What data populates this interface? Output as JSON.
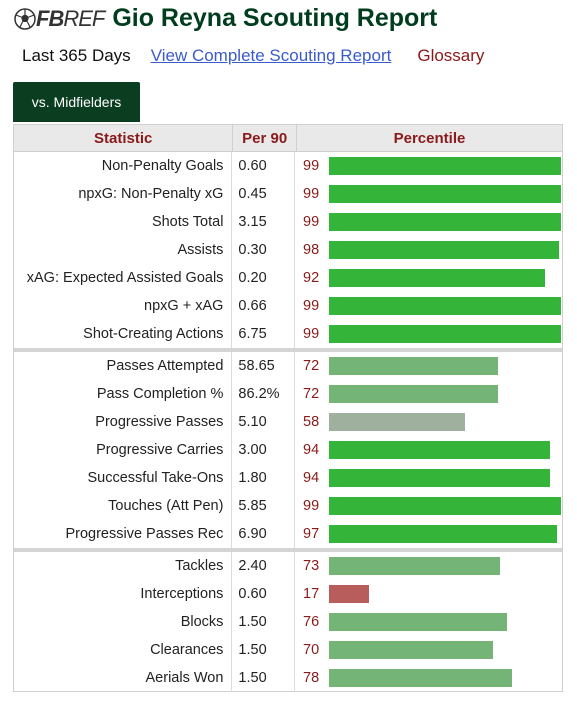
{
  "header": {
    "logo_text_bold": "FB",
    "logo_text_light": "REF",
    "title": "Gio Reyna Scouting Report"
  },
  "subnav": {
    "period": "Last 365 Days",
    "complete_link": "View Complete Scouting Report",
    "glossary": "Glossary"
  },
  "tab": {
    "label": "vs. Midfielders"
  },
  "colors": {
    "brand_green": "#0b3d20",
    "title_green": "#003c1e",
    "header_red": "#8a1a1a",
    "bar_high": "#35b43a",
    "bar_mid": "#74b477",
    "bar_low": "#9fb09f",
    "bar_bad": "#b85c5c"
  },
  "table": {
    "columns": [
      "Statistic",
      "Per 90",
      "Percentile"
    ],
    "groups": [
      [
        {
          "stat": "Non-Penalty Goals",
          "per90": "0.60",
          "pct": 99
        },
        {
          "stat": "npxG: Non-Penalty xG",
          "per90": "0.45",
          "pct": 99
        },
        {
          "stat": "Shots Total",
          "per90": "3.15",
          "pct": 99
        },
        {
          "stat": "Assists",
          "per90": "0.30",
          "pct": 98
        },
        {
          "stat": "xAG: Expected Assisted Goals",
          "per90": "0.20",
          "pct": 92
        },
        {
          "stat": "npxG + xAG",
          "per90": "0.66",
          "pct": 99
        },
        {
          "stat": "Shot-Creating Actions",
          "per90": "6.75",
          "pct": 99
        }
      ],
      [
        {
          "stat": "Passes Attempted",
          "per90": "58.65",
          "pct": 72
        },
        {
          "stat": "Pass Completion %",
          "per90": "86.2%",
          "pct": 72
        },
        {
          "stat": "Progressive Passes",
          "per90": "5.10",
          "pct": 58
        },
        {
          "stat": "Progressive Carries",
          "per90": "3.00",
          "pct": 94
        },
        {
          "stat": "Successful Take-Ons",
          "per90": "1.80",
          "pct": 94
        },
        {
          "stat": "Touches (Att Pen)",
          "per90": "5.85",
          "pct": 99
        },
        {
          "stat": "Progressive Passes Rec",
          "per90": "6.90",
          "pct": 97
        }
      ],
      [
        {
          "stat": "Tackles",
          "per90": "2.40",
          "pct": 73
        },
        {
          "stat": "Interceptions",
          "per90": "0.60",
          "pct": 17
        },
        {
          "stat": "Blocks",
          "per90": "1.50",
          "pct": 76
        },
        {
          "stat": "Clearances",
          "per90": "1.50",
          "pct": 70
        },
        {
          "stat": "Aerials Won",
          "per90": "1.50",
          "pct": 78
        }
      ]
    ]
  }
}
